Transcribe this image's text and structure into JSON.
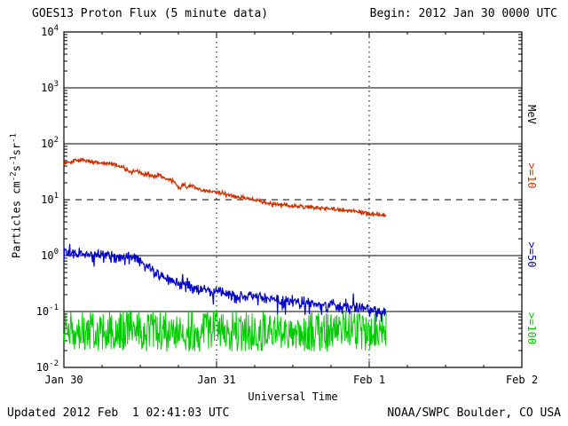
{
  "footer": {
    "updated": "Updated 2012 Feb  1 02:41:03 UTC",
    "credit": "NOAA/SWPC Boulder, CO USA"
  },
  "chart_data": {
    "type": "line",
    "title": "GOES13 Proton Flux (5 minute data)",
    "begin_label": "Begin: 2012 Jan 30 0000 UTC",
    "xlabel": "Universal Time",
    "ylabel_segments": [
      {
        "text": "Particles cm"
      },
      {
        "sup": "-2"
      },
      {
        "text": "s"
      },
      {
        "sup": "-1"
      },
      {
        "text": "sr"
      },
      {
        "sup": "-1"
      }
    ],
    "x_axis": {
      "range_days": [
        0,
        3
      ],
      "ticks": [
        {
          "t": 0,
          "label": "Jan 30"
        },
        {
          "t": 1,
          "label": "Jan 31"
        },
        {
          "t": 2,
          "label": "Feb 1"
        },
        {
          "t": 3,
          "label": "Feb 2"
        }
      ],
      "gridline_days": [
        1,
        2
      ]
    },
    "y_axis": {
      "scale": "log",
      "min_exp": -2,
      "max_exp": 4,
      "gridlines": [
        {
          "exp": 3,
          "style": "solid"
        },
        {
          "exp": 2,
          "style": "solid"
        },
        {
          "exp": 1,
          "style": "dashed"
        },
        {
          "exp": 0,
          "style": "solid"
        },
        {
          "exp": -1,
          "style": "solid"
        }
      ]
    },
    "right_axis_labels": [
      {
        "text": "MeV",
        "color": "#000000"
      },
      {
        "text": ">=10",
        "color": "#cc3300"
      },
      {
        "text": ">=50",
        "color": "#0000cc"
      },
      {
        "text": ">=100",
        "color": "#00cc00"
      }
    ],
    "seed": 20120130,
    "samples_per_day": 288,
    "end_day": 2.112,
    "series": [
      {
        "id": "ge10",
        "name": ">=10 MeV",
        "color": "#cc3300",
        "width": 1.3,
        "noise_log10": 0.02,
        "keypoints": [
          [
            0.0,
            42
          ],
          [
            0.03,
            47
          ],
          [
            0.08,
            50
          ],
          [
            0.13,
            50
          ],
          [
            0.18,
            48
          ],
          [
            0.23,
            46
          ],
          [
            0.27,
            44
          ],
          [
            0.31,
            44
          ],
          [
            0.35,
            41
          ],
          [
            0.38,
            40
          ],
          [
            0.41,
            34
          ],
          [
            0.44,
            31
          ],
          [
            0.47,
            33
          ],
          [
            0.5,
            31
          ],
          [
            0.53,
            28
          ],
          [
            0.56,
            28
          ],
          [
            0.6,
            26
          ],
          [
            0.63,
            27
          ],
          [
            0.66,
            24
          ],
          [
            0.7,
            23
          ],
          [
            0.73,
            20
          ],
          [
            0.76,
            15
          ],
          [
            0.78,
            19
          ],
          [
            0.81,
            17
          ],
          [
            0.84,
            18
          ],
          [
            0.87,
            16
          ],
          [
            0.9,
            15
          ],
          [
            0.93,
            14.5
          ],
          [
            0.97,
            14
          ],
          [
            1.0,
            13.5
          ],
          [
            1.04,
            13
          ],
          [
            1.08,
            12
          ],
          [
            1.12,
            11.5
          ],
          [
            1.16,
            11
          ],
          [
            1.2,
            10.5
          ],
          [
            1.24,
            10
          ],
          [
            1.28,
            9.3
          ],
          [
            1.32,
            8.8
          ],
          [
            1.36,
            8.4
          ],
          [
            1.4,
            8.1
          ],
          [
            1.45,
            7.9
          ],
          [
            1.5,
            7.7
          ],
          [
            1.55,
            7.5
          ],
          [
            1.6,
            7.3
          ],
          [
            1.65,
            7.1
          ],
          [
            1.7,
            7.0
          ],
          [
            1.75,
            6.8
          ],
          [
            1.8,
            6.6
          ],
          [
            1.85,
            6.4
          ],
          [
            1.9,
            6.2
          ],
          [
            1.95,
            6.0
          ],
          [
            2.0,
            5.7
          ],
          [
            2.05,
            5.4
          ],
          [
            2.112,
            5.1
          ]
        ]
      },
      {
        "id": "ge50",
        "name": ">=50 MeV",
        "color": "#0000cc",
        "width": 1.2,
        "noise_log10": 0.05,
        "spike_log10": 0.15,
        "spike_prob": 0.06,
        "keypoints": [
          [
            0.0,
            1.05
          ],
          [
            0.05,
            1.1
          ],
          [
            0.1,
            1.05
          ],
          [
            0.15,
            1.1
          ],
          [
            0.2,
            1.0
          ],
          [
            0.25,
            1.05
          ],
          [
            0.3,
            1.0
          ],
          [
            0.35,
            0.95
          ],
          [
            0.4,
            0.95
          ],
          [
            0.45,
            0.9
          ],
          [
            0.48,
            0.85
          ],
          [
            0.52,
            0.75
          ],
          [
            0.56,
            0.62
          ],
          [
            0.6,
            0.52
          ],
          [
            0.64,
            0.44
          ],
          [
            0.68,
            0.38
          ],
          [
            0.72,
            0.34
          ],
          [
            0.76,
            0.31
          ],
          [
            0.8,
            0.29
          ],
          [
            0.85,
            0.27
          ],
          [
            0.9,
            0.25
          ],
          [
            0.95,
            0.235
          ],
          [
            1.0,
            0.225
          ],
          [
            1.1,
            0.205
          ],
          [
            1.2,
            0.19
          ],
          [
            1.3,
            0.175
          ],
          [
            1.4,
            0.16
          ],
          [
            1.5,
            0.15
          ],
          [
            1.6,
            0.14
          ],
          [
            1.7,
            0.13
          ],
          [
            1.8,
            0.122
          ],
          [
            1.9,
            0.115
          ],
          [
            2.0,
            0.108
          ],
          [
            2.05,
            0.105
          ],
          [
            2.112,
            0.1
          ]
        ]
      },
      {
        "id": "ge100",
        "name": ">=100 MeV",
        "color": "#00cc00",
        "width": 1.0,
        "mode": "uniform",
        "uniform_log10": [
          -1.72,
          -0.98
        ]
      }
    ]
  }
}
